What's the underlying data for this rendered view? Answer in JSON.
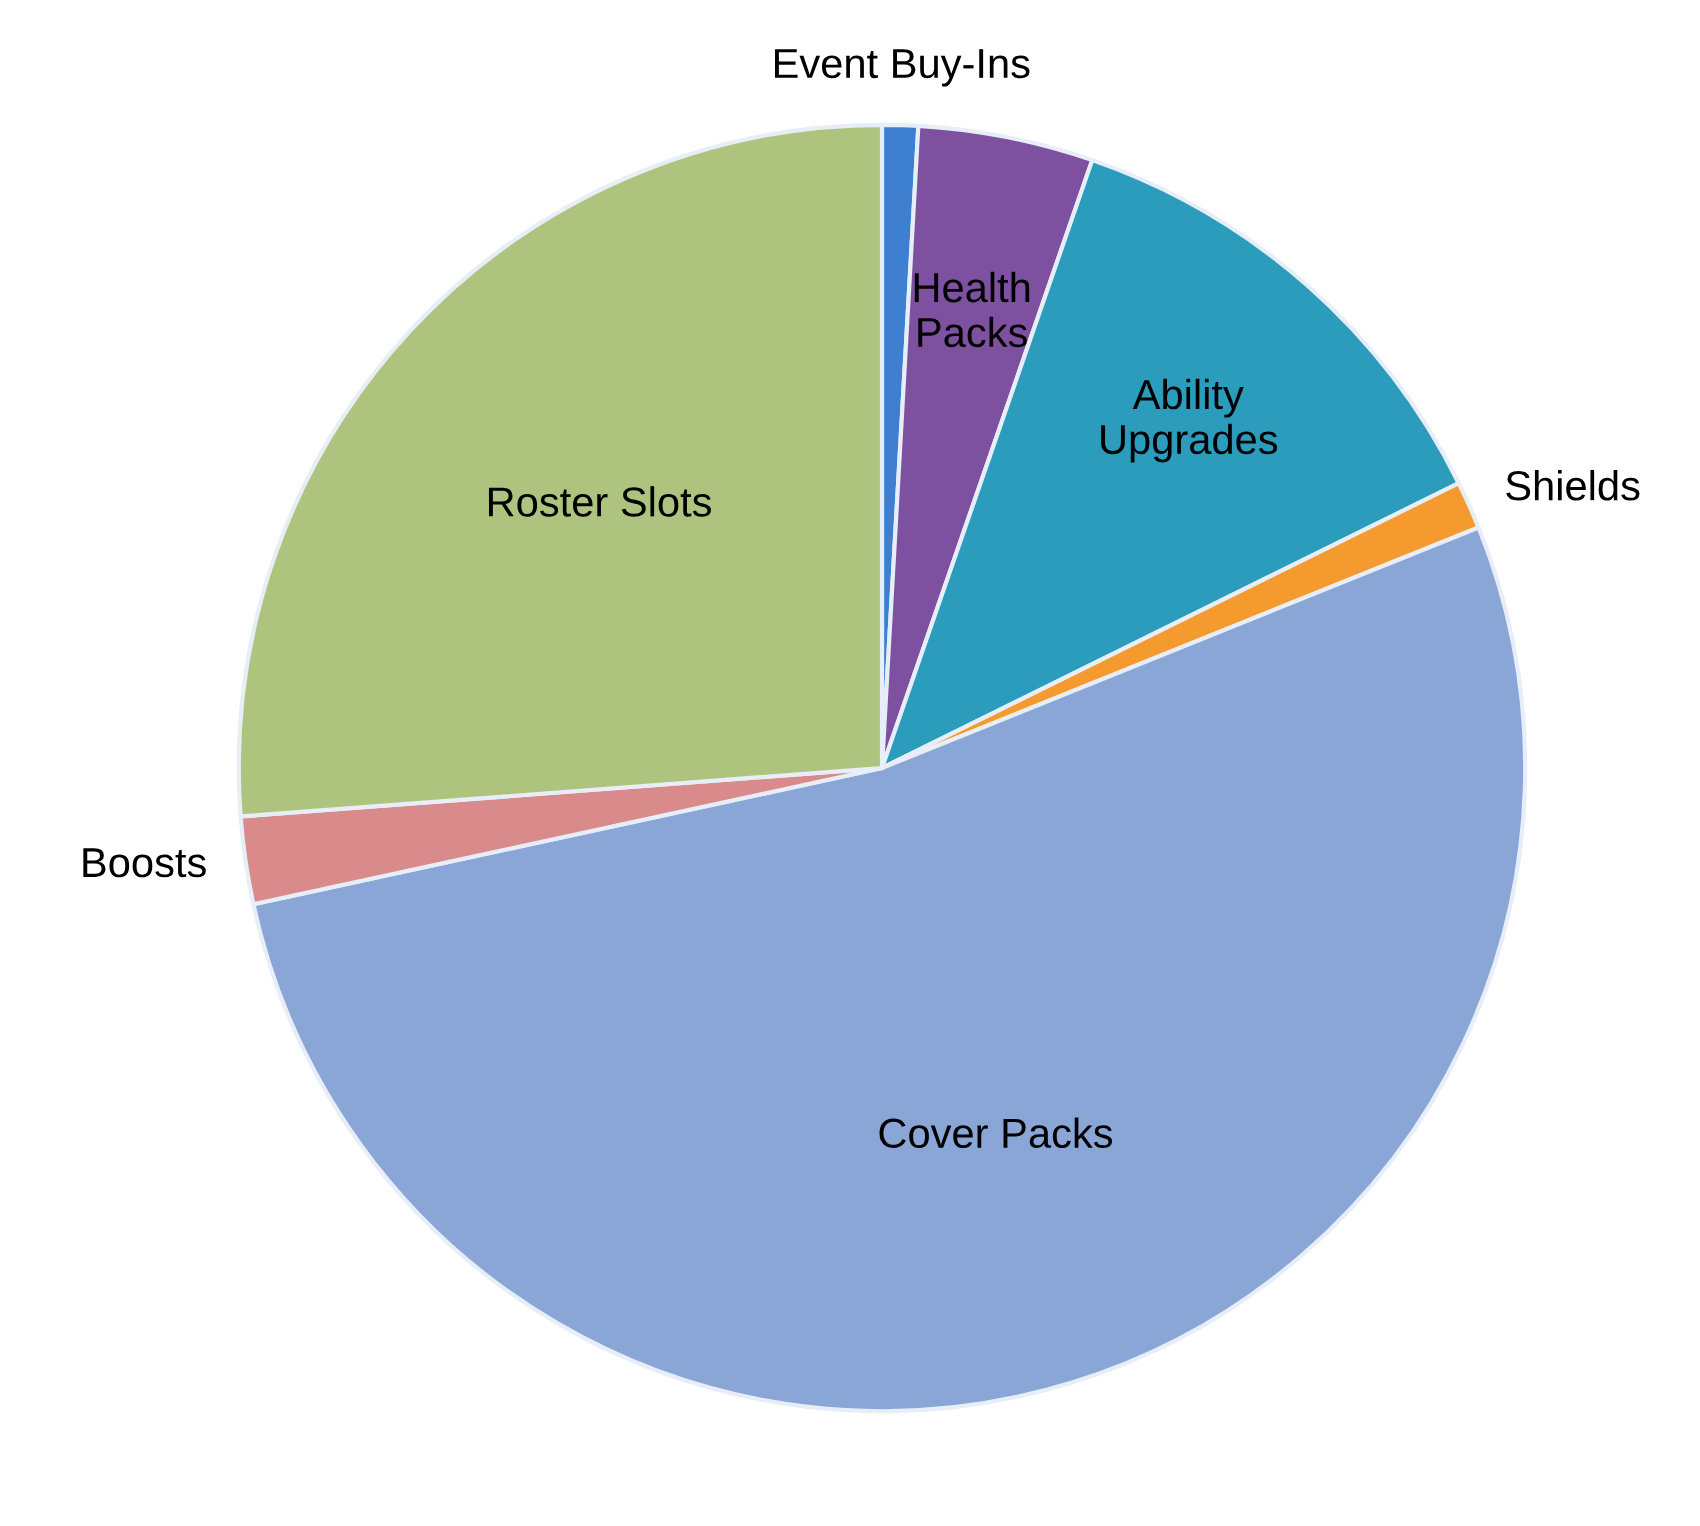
{
  "chart_data": {
    "type": "pie",
    "categories": [
      "Event Buy-Ins",
      "Health Packs",
      "Ability Upgrades",
      "Shields",
      "Cover Packs",
      "Boosts",
      "Roster Slots"
    ],
    "values": [
      0.9,
      4.4,
      12.4,
      1.2,
      52.7,
      2.2,
      26.2
    ],
    "colors": [
      "#3f7fcf",
      "#7d50a0",
      "#2b9cbc",
      "#f59a2f",
      "#8aa6d6",
      "#d98a8a",
      "#aec47e"
    ],
    "legend": false
  }
}
